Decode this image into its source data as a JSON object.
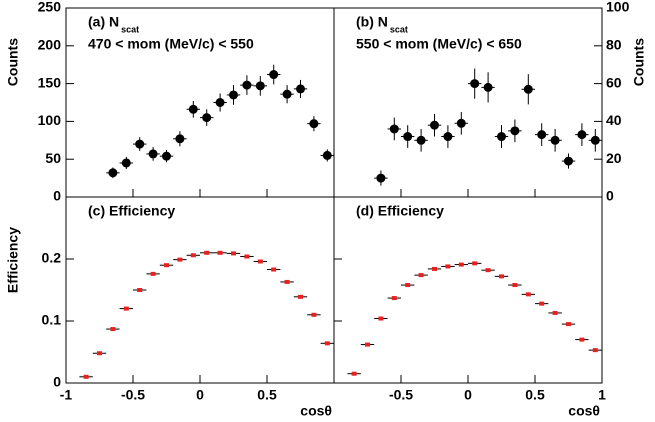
{
  "chart_data": [
    {
      "type": "scatter",
      "title": "(a) N",
      "title_subscript": "scat",
      "subtitle": "470 < mom (MeV/c) < 550",
      "ylabel": "Counts",
      "y_axis_side": "left",
      "marker": "circle",
      "color": "#000000",
      "x": [
        -0.65,
        -0.55,
        -0.45,
        -0.35,
        -0.25,
        -0.15,
        -0.05,
        0.05,
        0.15,
        0.25,
        0.35,
        0.45,
        0.55,
        0.65,
        0.75,
        0.85,
        0.95
      ],
      "values": [
        32,
        45,
        70,
        57,
        54,
        77,
        116,
        105,
        125,
        135,
        148,
        147,
        162,
        136,
        143,
        97,
        55
      ],
      "errors": [
        7,
        8,
        9,
        9,
        8,
        10,
        11,
        11,
        12,
        13,
        13,
        13,
        13,
        12,
        12,
        10,
        8
      ],
      "xerr": 0.05,
      "xlim": [
        -1,
        1
      ],
      "ylim": [
        0,
        250
      ],
      "xticks": [
        -1,
        -0.5,
        0,
        0.5,
        1
      ],
      "yticks": [
        0,
        50,
        100,
        150,
        200,
        250
      ],
      "xtick_labels": false,
      "ytick_labels": true
    },
    {
      "type": "scatter",
      "title": "(b) N",
      "title_subscript": "scat",
      "subtitle": "550 < mom (MeV/c) < 650",
      "ylabel": "Counts",
      "y_axis_side": "right",
      "marker": "circle",
      "color": "#000000",
      "x": [
        -0.65,
        -0.55,
        -0.45,
        -0.35,
        -0.25,
        -0.15,
        -0.05,
        0.05,
        0.15,
        0.25,
        0.35,
        0.45,
        0.55,
        0.65,
        0.75,
        0.85,
        0.95
      ],
      "values": [
        10,
        36,
        32,
        30,
        38,
        32,
        39,
        60,
        58,
        32,
        35,
        57,
        33,
        30,
        19,
        33,
        30
      ],
      "errors": [
        4,
        6,
        6,
        6,
        6,
        6,
        6,
        8,
        8,
        6,
        6,
        8,
        6,
        6,
        4,
        6,
        6
      ],
      "xerr": 0.05,
      "xlim": [
        -1,
        1
      ],
      "ylim": [
        0,
        100
      ],
      "xticks": [
        -1,
        -0.5,
        0,
        0.5,
        1
      ],
      "yticks": [
        0,
        20,
        40,
        60,
        80,
        100
      ],
      "xtick_labels": false,
      "ytick_labels": true
    },
    {
      "type": "scatter",
      "title": "(c) Efficiency",
      "ylabel": "Efficiency",
      "xlabel": "cosθ",
      "y_axis_side": "left",
      "marker": "square",
      "color": "#e8201e",
      "x": [
        -0.85,
        -0.75,
        -0.65,
        -0.55,
        -0.45,
        -0.35,
        -0.25,
        -0.15,
        -0.05,
        0.05,
        0.15,
        0.25,
        0.35,
        0.45,
        0.55,
        0.65,
        0.75,
        0.85,
        0.95
      ],
      "values": [
        0.01,
        0.048,
        0.087,
        0.12,
        0.15,
        0.176,
        0.19,
        0.199,
        0.206,
        0.21,
        0.21,
        0.209,
        0.204,
        0.196,
        0.183,
        0.163,
        0.139,
        0.11,
        0.064
      ],
      "xerr": 0.05,
      "xlim": [
        -1,
        1
      ],
      "ylim": [
        0,
        0.3
      ],
      "xticks": [
        -1,
        -0.5,
        0,
        0.5
      ],
      "yticks": [
        0,
        0.1,
        0.2
      ],
      "xtick_labels": true,
      "ytick_labels": true
    },
    {
      "type": "scatter",
      "title": "(d) Efficiency",
      "xlabel": "cosθ",
      "y_axis_side": "left",
      "marker": "square",
      "color": "#e8201e",
      "x": [
        -0.85,
        -0.75,
        -0.65,
        -0.55,
        -0.45,
        -0.35,
        -0.25,
        -0.15,
        -0.05,
        0.05,
        0.15,
        0.25,
        0.35,
        0.45,
        0.55,
        0.65,
        0.75,
        0.85,
        0.95
      ],
      "values": [
        0.015,
        0.062,
        0.104,
        0.137,
        0.158,
        0.174,
        0.184,
        0.188,
        0.191,
        0.193,
        0.182,
        0.172,
        0.158,
        0.143,
        0.128,
        0.113,
        0.095,
        0.07,
        0.053
      ],
      "xerr": 0.05,
      "xlim": [
        -1,
        1
      ],
      "ylim": [
        0,
        0.3
      ],
      "xticks": [
        -0.5,
        0,
        0.5,
        1
      ],
      "yticks": [
        0,
        0.1,
        0.2
      ],
      "xtick_labels": true,
      "ytick_labels": false
    }
  ]
}
